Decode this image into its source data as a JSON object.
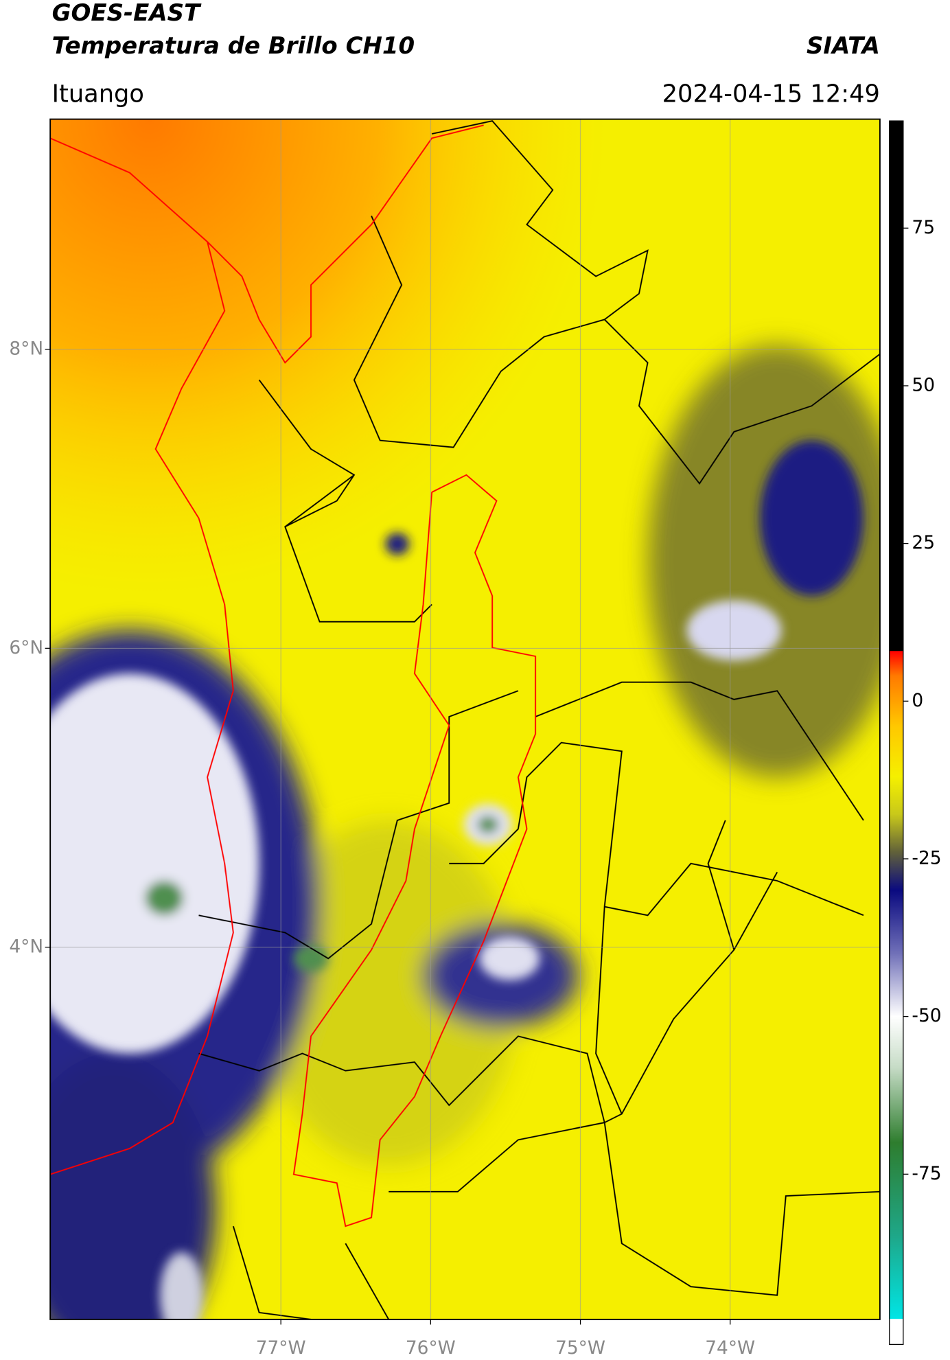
{
  "header": {
    "title": "GOES-EAST",
    "subtitle": "Temperatura de Brillo CH10",
    "source": "SIATA",
    "place": "Ituango",
    "datetime": "2024-04-15 12:49"
  },
  "map": {
    "lonlim": [
      -78.54,
      -73.0
    ],
    "latlim": [
      1.51,
      9.54
    ],
    "lon_ticks": [
      {
        "value": -77,
        "label": "77°W"
      },
      {
        "value": -76,
        "label": "76°W"
      },
      {
        "value": -75,
        "label": "75°W"
      },
      {
        "value": -74,
        "label": "74°W"
      }
    ],
    "lat_ticks": [
      {
        "value": 8,
        "label": "8°N"
      },
      {
        "value": 6,
        "label": "6°N"
      },
      {
        "value": 4,
        "label": "4°N"
      }
    ],
    "grid": true
  },
  "colorbar": {
    "lim": [
      -102,
      92
    ],
    "ticks": [
      75,
      50,
      25,
      0,
      -25,
      -50,
      -75
    ],
    "stops": [
      [
        -102,
        "#ffffff"
      ],
      [
        -98,
        "#ffffff"
      ],
      [
        -97.9,
        "#00e5e5"
      ],
      [
        -85,
        "#1ea88a"
      ],
      [
        -70,
        "#2e7d2e"
      ],
      [
        -58,
        "#c7dcc7"
      ],
      [
        -50,
        "#ffffff"
      ],
      [
        -40,
        "#7070b8"
      ],
      [
        -30,
        "#0a0a80"
      ],
      [
        -24,
        "#60603a"
      ],
      [
        -18,
        "#c8c81a"
      ],
      [
        -12,
        "#f5f000"
      ],
      [
        -4,
        "#ffc800"
      ],
      [
        4,
        "#ff7a00"
      ],
      [
        7.9,
        "#ff0000"
      ],
      [
        8,
        "#000000"
      ],
      [
        92,
        "#000000"
      ]
    ]
  }
}
